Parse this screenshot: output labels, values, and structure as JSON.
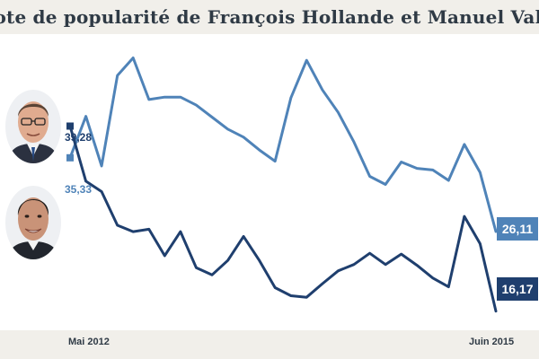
{
  "title": "Cote de popularité de François Hollande et Manuel Valls",
  "colors": {
    "hollande": "#4f83b8",
    "valls": "#1f3f6e",
    "band": "#f1efea",
    "title_text": "#2f3a45"
  },
  "portraits": {
    "hollande": "francois-hollande-portrait",
    "valls": "manuel-valls-portrait"
  },
  "start_labels": {
    "hollande": "35,33",
    "valls": "39,28"
  },
  "end_labels": {
    "hollande": "26,11",
    "valls": "16,17"
  },
  "chart_data": {
    "type": "line",
    "title": "Cote de popularité de François Hollande et Manuel Valls",
    "x_tick_labels": [
      "Mai 2012",
      "Juin 2015"
    ],
    "x_start": "Mai 2012",
    "x_end": "Juin 2015",
    "xlabel": "",
    "ylabel": "",
    "grid": false,
    "legend": "none (portraits at left)",
    "series": [
      {
        "key": "hollande",
        "values": [
          35.33,
          40.5,
          34.3,
          45.6,
          47.8,
          42.6,
          42.9,
          42.9,
          41.9,
          40.4,
          38.9,
          37.9,
          36.3,
          34.9,
          42.8,
          47.5,
          43.8,
          41.0,
          37.3,
          33.0,
          32.0,
          34.8,
          34.0,
          33.8,
          32.5,
          37.0,
          33.5,
          26.11
        ]
      },
      {
        "key": "valls",
        "values": [
          39.28,
          32.4,
          31.1,
          26.9,
          26.1,
          26.4,
          23.1,
          26.1,
          21.6,
          20.7,
          22.5,
          25.5,
          22.5,
          19.1,
          18.1,
          17.9,
          19.6,
          21.2,
          22.0,
          23.4,
          22.0,
          23.3,
          21.9,
          20.3,
          19.2,
          28.0,
          24.6,
          16.17
        ]
      }
    ],
    "ylim": [
      14.9,
      50.1
    ]
  }
}
